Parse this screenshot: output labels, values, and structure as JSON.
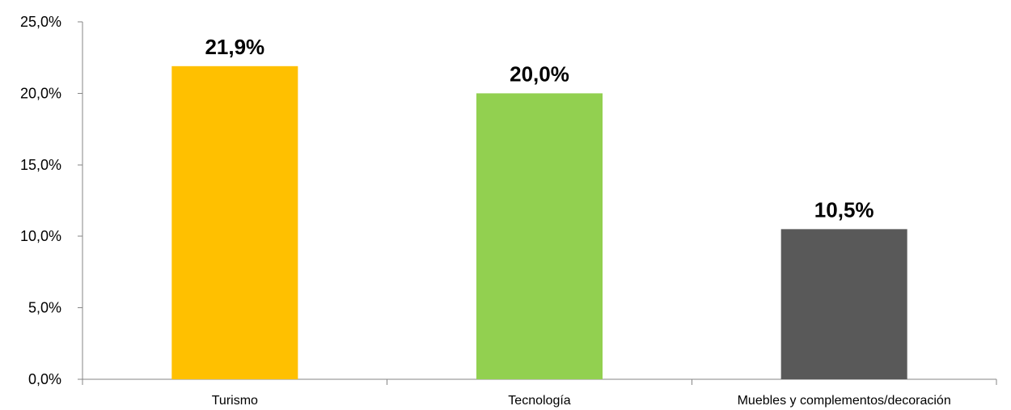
{
  "chart_data": {
    "type": "bar",
    "categories": [
      "Turismo",
      "Tecnología",
      "Muebles y complementos/decoración"
    ],
    "values": [
      21.9,
      20.0,
      10.5
    ],
    "data_labels": [
      "21,9%",
      "20,0%",
      "10,5%"
    ],
    "colors": [
      "#FFC000",
      "#92D050",
      "#595959"
    ],
    "ylim": [
      0,
      25
    ],
    "yticks": [
      0,
      5,
      10,
      15,
      20,
      25
    ],
    "ytick_labels": [
      "0,0%",
      "5,0%",
      "10,0%",
      "15,0%",
      "20,0%",
      "25,0%"
    ],
    "grid": false,
    "legend": "none"
  }
}
